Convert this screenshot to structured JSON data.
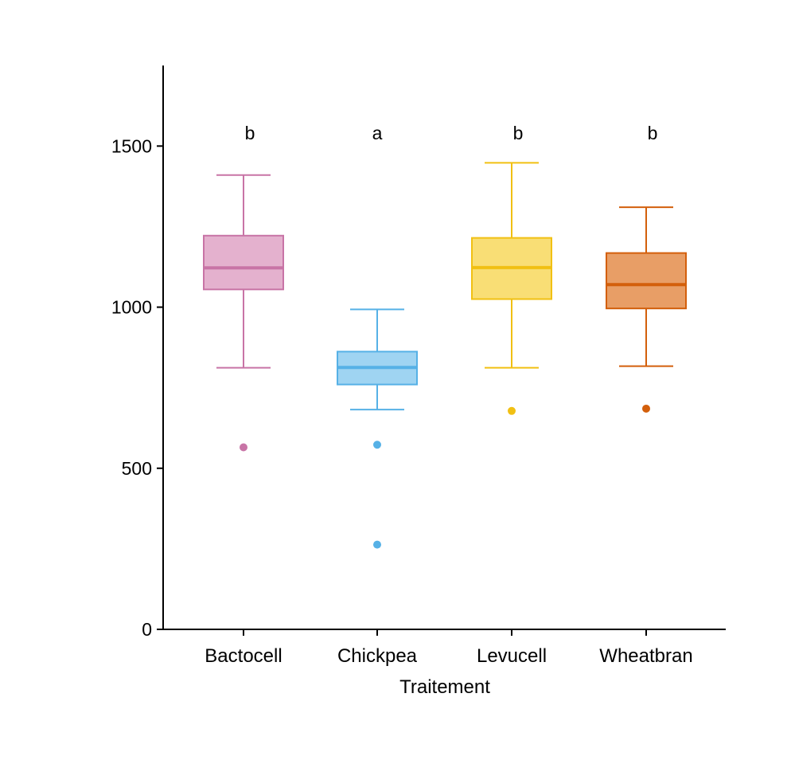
{
  "chart_data": {
    "type": "boxplot",
    "title": "",
    "xlabel": "Traitement",
    "ylabel": "",
    "ylim": [
      0,
      1750
    ],
    "y_ticks": [
      0,
      500,
      1000,
      1500
    ],
    "y_tick_labels": [
      "0",
      "500",
      "1000",
      "1500"
    ],
    "grid": false,
    "legend": "none",
    "categories": [
      "Bactocell",
      "Chickpea",
      "Levucell",
      "Wheatbran"
    ],
    "boxes": [
      {
        "category": "Bactocell",
        "whisker_low": 812,
        "q1": 1055,
        "median": 1122,
        "q3": 1222,
        "whisker_high": 1410,
        "outliers": [
          565
        ],
        "letter": "b",
        "fill": "#e4b1ce",
        "stroke": "#c874a6"
      },
      {
        "category": "Chickpea",
        "whisker_low": 682,
        "q1": 760,
        "median": 813,
        "q3": 862,
        "whisker_high": 993,
        "outliers": [
          573,
          263
        ],
        "letter": "a",
        "fill": "#9fd4f2",
        "stroke": "#56b1e6"
      },
      {
        "category": "Levucell",
        "whisker_low": 812,
        "q1": 1025,
        "median": 1123,
        "q3": 1215,
        "whisker_high": 1448,
        "outliers": [
          678
        ],
        "letter": "b",
        "fill": "#f9de75",
        "stroke": "#f1c013"
      },
      {
        "category": "Wheatbran",
        "whisker_low": 817,
        "q1": 996,
        "median": 1070,
        "q3": 1168,
        "whisker_high": 1310,
        "outliers": [
          685
        ],
        "letter": "b",
        "fill": "#e89e66",
        "stroke": "#d35f0b"
      }
    ],
    "letter_y": 1540
  }
}
